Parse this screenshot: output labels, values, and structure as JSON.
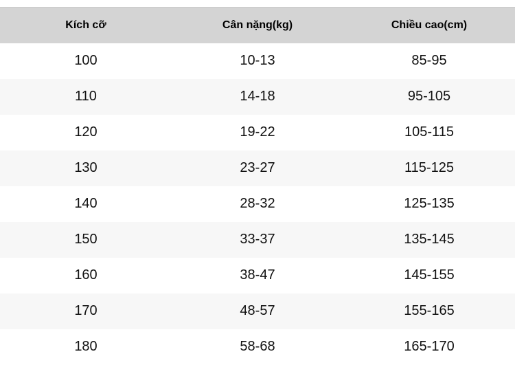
{
  "table": {
    "columns": [
      "Kích cỡ",
      "Cân nặng(kg)",
      "Chiều cao(cm)"
    ],
    "rows": [
      [
        "100",
        "10-13",
        "85-95"
      ],
      [
        "110",
        "14-18",
        "95-105"
      ],
      [
        "120",
        "19-22",
        "105-115"
      ],
      [
        "130",
        "23-27",
        "115-125"
      ],
      [
        "140",
        "28-32",
        "125-135"
      ],
      [
        "150",
        "33-37",
        "135-145"
      ],
      [
        "160",
        "38-47",
        "145-155"
      ],
      [
        "170",
        "48-57",
        "155-165"
      ],
      [
        "180",
        "58-68",
        "165-170"
      ]
    ]
  },
  "colors": {
    "header_bg": "#d4d4d4",
    "row_alt_bg": "#f7f7f7",
    "text": "#111111"
  },
  "chart_data": {
    "type": "table",
    "title": "",
    "columns": [
      "Kích cỡ",
      "Cân nặng(kg)",
      "Chiều cao(cm)"
    ],
    "rows": [
      [
        "100",
        "10-13",
        "85-95"
      ],
      [
        "110",
        "14-18",
        "95-105"
      ],
      [
        "120",
        "19-22",
        "105-115"
      ],
      [
        "130",
        "23-27",
        "115-125"
      ],
      [
        "140",
        "28-32",
        "125-135"
      ],
      [
        "150",
        "33-37",
        "135-145"
      ],
      [
        "160",
        "38-47",
        "145-155"
      ],
      [
        "170",
        "48-57",
        "155-165"
      ],
      [
        "180",
        "58-68",
        "165-170"
      ]
    ],
    "layout_hints": {
      "header_background": "#d4d4d4",
      "zebra_striping": true,
      "text_align": "center",
      "borders": "none"
    }
  }
}
